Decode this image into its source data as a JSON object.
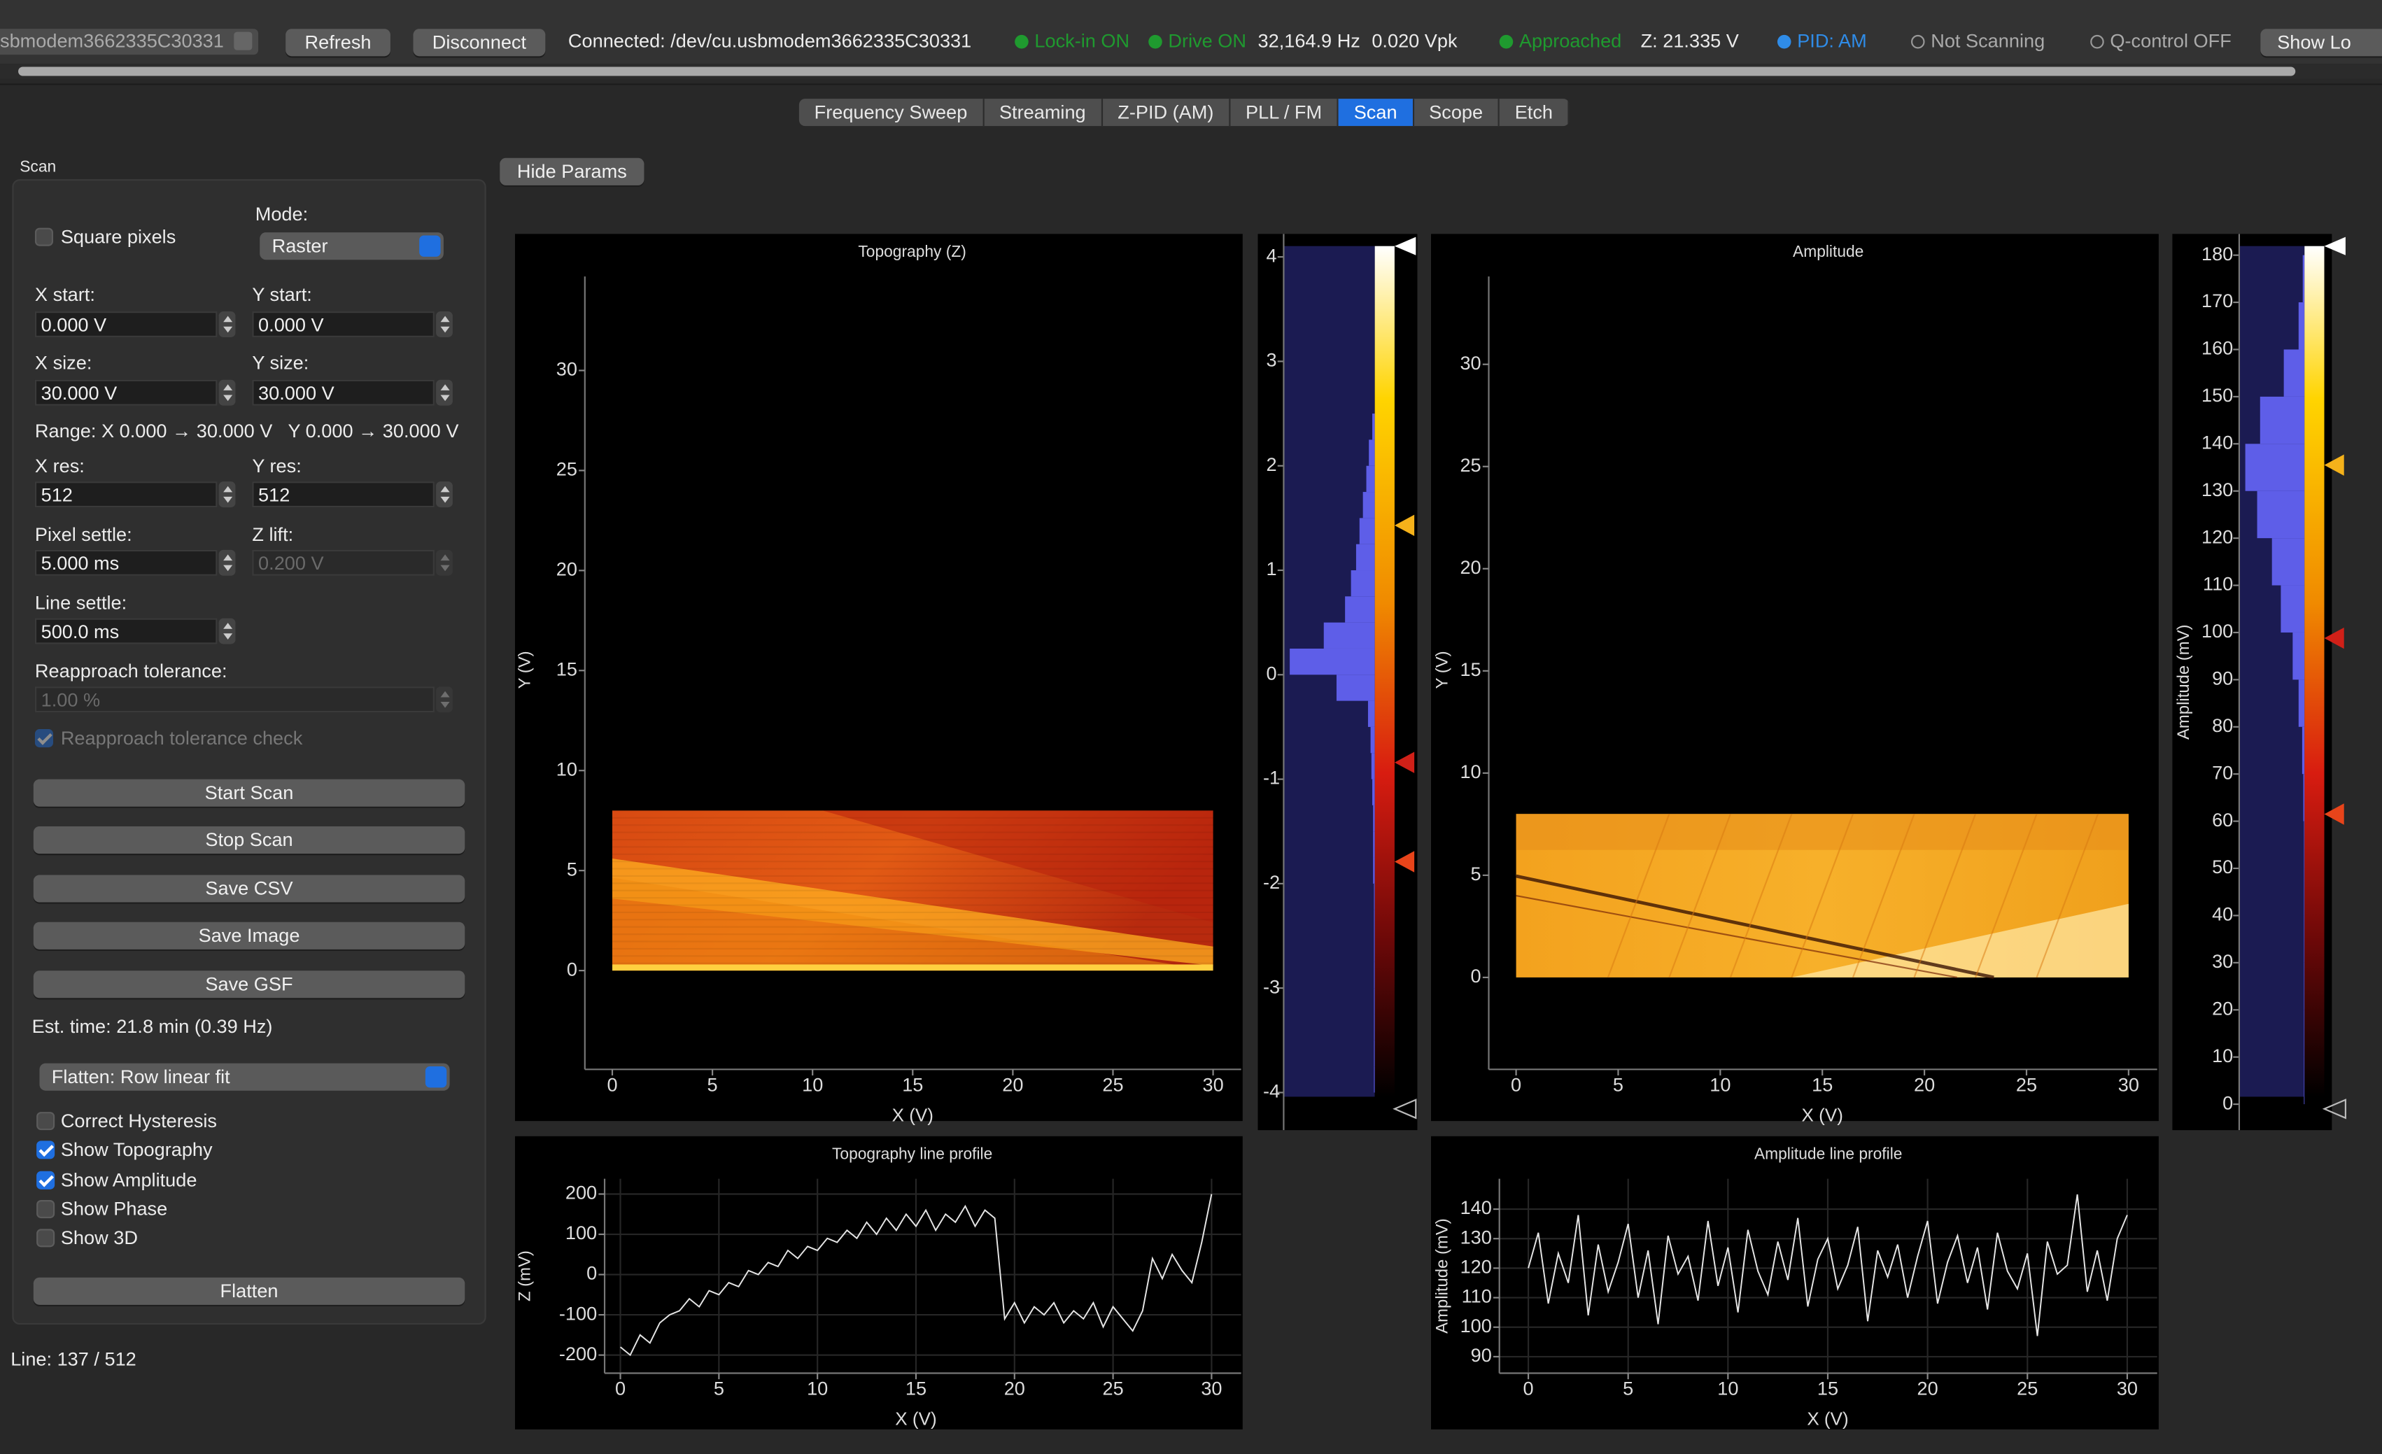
{
  "toolbar": {
    "port": "sbmodem3662335C30331",
    "refresh": "Refresh",
    "disconnect": "Disconnect",
    "connection": "Connected: /dev/cu.usbmodem3662335C30331",
    "lockin": "Lock-in ON",
    "drive": "Drive ON",
    "frequency": "32,164.9 Hz",
    "drive_amplitude": "0.020 Vpk",
    "approach": "Approached",
    "z": "Z: 21.335 V",
    "pid": "PID: AM",
    "scanning": "Not Scanning",
    "qcontrol": "Q-control OFF",
    "show_log": "Show Lo"
  },
  "tabs": {
    "items": [
      "Frequency Sweep",
      "Streaming",
      "Z-PID (AM)",
      "PLL / FM",
      "Scan",
      "Scope",
      "Etch"
    ],
    "active": 4
  },
  "hide_params": "Hide Params",
  "panel": {
    "title": "Scan",
    "square_pixels": {
      "label": "Square pixels",
      "checked": false
    },
    "mode_label": "Mode:",
    "mode": "Raster",
    "x_start_label": "X start:",
    "x_start": "0.000 V",
    "y_start_label": "Y start:",
    "y_start": "0.000 V",
    "x_size_label": "X size:",
    "x_size": "30.000 V",
    "y_size_label": "Y size:",
    "y_size": "30.000 V",
    "range": "Range: X 0.000 → 30.000 V   Y 0.000 → 30.000 V",
    "x_res_label": "X res:",
    "x_res": "512",
    "y_res_label": "Y res:",
    "y_res": "512",
    "pixel_settle_label": "Pixel settle:",
    "pixel_settle": "5.000 ms",
    "z_lift_label": "Z lift:",
    "z_lift": "0.200 V",
    "line_settle_label": "Line settle:",
    "line_settle": "500.0 ms",
    "reapproach_label": "Reapproach tolerance:",
    "reapproach": "1.00 %",
    "reapproach_check": {
      "label": "Reapproach tolerance check",
      "checked": true
    },
    "buttons": [
      "Start Scan",
      "Stop Scan",
      "Save CSV",
      "Save Image",
      "Save GSF"
    ],
    "est_time": "Est. time: 21.8 min (0.39 Hz)",
    "flatten_mode": "Flatten: Row linear fit",
    "options": [
      {
        "label": "Correct Hysteresis",
        "checked": false
      },
      {
        "label": "Show Topography",
        "checked": true
      },
      {
        "label": "Show Amplitude",
        "checked": true
      },
      {
        "label": "Show Phase",
        "checked": false
      },
      {
        "label": "Show 3D",
        "checked": false
      }
    ],
    "flatten": "Flatten"
  },
  "line_status": "Line: 137 / 512",
  "topography": {
    "title": "Topography (Z)",
    "xlabel": "X (V)",
    "ylabel": "Y (V)",
    "xlim": [
      -1.37,
      31.4
    ],
    "ylim": [
      -4.94,
      34.7
    ],
    "xticks": [
      0,
      5,
      10,
      15,
      20,
      25,
      30
    ],
    "yticks": [
      0,
      5,
      10,
      15,
      20,
      25,
      30
    ],
    "image_extent": [
      0,
      30,
      0,
      8
    ],
    "colorbar": {
      "ylim": [
        -4.36,
        4.22
      ],
      "yticks": [
        -4,
        -3,
        -2,
        -1,
        0,
        1,
        2,
        3,
        4
      ],
      "levels": [
        1.43,
        -0.84,
        -1.79
      ],
      "histogram": {
        "bins": [
          -4,
          -3.75,
          -3.5,
          -3.25,
          -3,
          -2.75,
          -2.5,
          -2.25,
          -2,
          -1.75,
          -1.5,
          -1.25,
          -1,
          -0.75,
          -0.5,
          -0.25,
          0,
          0.25,
          0.5,
          0.75,
          1,
          1.25,
          1.5,
          1.75,
          2,
          2.25,
          2.5,
          2.75,
          3,
          3.25,
          3.5,
          3.75,
          4
        ],
        "counts": [
          0.01,
          0.01,
          0.01,
          0.01,
          0.01,
          0.01,
          0.01,
          0.01,
          0.02,
          0.02,
          0.02,
          0.03,
          0.04,
          0.05,
          0.08,
          0.45,
          1.0,
          0.6,
          0.35,
          0.28,
          0.22,
          0.18,
          0.14,
          0.1,
          0.07,
          0.03,
          0,
          0,
          0,
          0,
          0,
          0
        ]
      }
    }
  },
  "amplitude": {
    "title": "Amplitude",
    "xlabel": "X (V)",
    "ylabel": "Y (V)",
    "xlim": [
      -1.34,
      31.4
    ],
    "ylim": [
      -4.5,
      34.3
    ],
    "xticks": [
      0,
      5,
      10,
      15,
      20,
      25,
      30
    ],
    "yticks": [
      0,
      5,
      10,
      15,
      20,
      25,
      30
    ],
    "image_extent": [
      0,
      30,
      0,
      8
    ],
    "colorbar": {
      "ylabel": "Amplitude (mV)",
      "ylim": [
        -5.5,
        184.5
      ],
      "yticks": [
        0,
        10,
        20,
        30,
        40,
        50,
        60,
        70,
        80,
        90,
        100,
        110,
        120,
        130,
        140,
        150,
        160,
        170,
        180
      ],
      "levels": [
        135.5,
        98.8,
        61.5
      ],
      "histogram": {
        "bins": [
          0,
          10,
          20,
          30,
          40,
          50,
          60,
          70,
          80,
          90,
          100,
          110,
          120,
          130,
          140,
          150,
          160,
          170,
          180
        ],
        "counts": [
          0.01,
          0.01,
          0.01,
          0.01,
          0.01,
          0.01,
          0.02,
          0.04,
          0.1,
          0.2,
          0.4,
          0.55,
          0.8,
          1.0,
          0.75,
          0.35,
          0.1,
          0.03
        ]
      }
    }
  },
  "topography_profile": {
    "title": "Topography line profile",
    "xlabel": "X (V)",
    "ylabel": "Z (mV)",
    "xlim": [
      -0.8,
      31.5
    ],
    "ylim": [
      -245,
      238
    ],
    "xticks": [
      0,
      5,
      10,
      15,
      20,
      25,
      30
    ],
    "yticks": [
      -200,
      -100,
      0,
      100,
      200
    ],
    "grid": true,
    "x": [
      0,
      0.5,
      1,
      1.5,
      2,
      2.5,
      3,
      3.5,
      4,
      4.5,
      5,
      5.5,
      6,
      6.5,
      7,
      7.5,
      8,
      8.5,
      9,
      9.5,
      10,
      10.5,
      11,
      11.5,
      12,
      12.5,
      13,
      13.5,
      14,
      14.5,
      15,
      15.5,
      16,
      16.5,
      17,
      17.5,
      18,
      18.5,
      19,
      19.5,
      20,
      20.5,
      21,
      21.5,
      22,
      22.5,
      23,
      23.5,
      24,
      24.5,
      25,
      25.5,
      26,
      26.5,
      27,
      27.5,
      28,
      28.5,
      29,
      29.5,
      30
    ],
    "values": [
      -180,
      -200,
      -150,
      -170,
      -120,
      -100,
      -90,
      -60,
      -80,
      -40,
      -50,
      -20,
      -30,
      10,
      0,
      30,
      20,
      60,
      40,
      70,
      60,
      90,
      80,
      110,
      90,
      130,
      100,
      140,
      110,
      150,
      120,
      160,
      110,
      150,
      130,
      170,
      120,
      160,
      140,
      -110,
      -70,
      -120,
      -80,
      -100,
      -70,
      -120,
      -90,
      -110,
      -70,
      -130,
      -80,
      -110,
      -140,
      -90,
      40,
      -10,
      50,
      10,
      -20,
      80,
      200
    ]
  },
  "amplitude_profile": {
    "title": "Amplitude line profile",
    "xlabel": "X (V)",
    "ylabel": "Amplitude (mV)",
    "xlim": [
      -1.45,
      31.5
    ],
    "ylim": [
      84.4,
      150.3
    ],
    "xticks": [
      0,
      5,
      10,
      15,
      20,
      25,
      30
    ],
    "yticks": [
      90,
      100,
      110,
      120,
      130,
      140
    ],
    "grid": true,
    "x": [
      0,
      0.5,
      1,
      1.5,
      2,
      2.5,
      3,
      3.5,
      4,
      4.5,
      5,
      5.5,
      6,
      6.5,
      7,
      7.5,
      8,
      8.5,
      9,
      9.5,
      10,
      10.5,
      11,
      11.5,
      12,
      12.5,
      13,
      13.5,
      14,
      14.5,
      15,
      15.5,
      16,
      16.5,
      17,
      17.5,
      18,
      18.5,
      19,
      19.5,
      20,
      20.5,
      21,
      21.5,
      22,
      22.5,
      23,
      23.5,
      24,
      24.5,
      25,
      25.5,
      26,
      26.5,
      27,
      27.5,
      28,
      28.5,
      29,
      29.5,
      30
    ],
    "values": [
      120,
      132,
      108,
      125,
      115,
      138,
      104,
      128,
      112,
      122,
      135,
      110,
      126,
      101,
      131,
      118,
      124,
      109,
      136,
      114,
      127,
      105,
      133,
      119,
      111,
      129,
      116,
      137,
      107,
      123,
      130,
      113,
      121,
      134,
      102,
      126,
      117,
      128,
      110,
      124,
      136,
      108,
      122,
      131,
      115,
      127,
      106,
      132,
      119,
      113,
      125,
      97,
      129,
      118,
      121,
      145,
      112,
      126,
      109,
      130,
      138
    ]
  }
}
